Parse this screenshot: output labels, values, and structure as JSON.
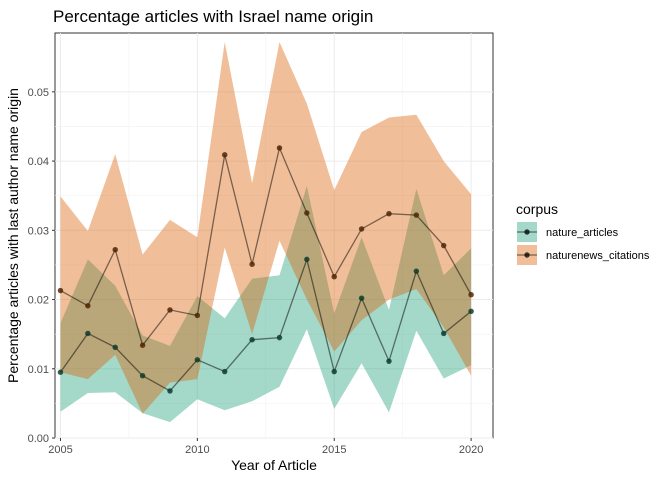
{
  "chart_data": {
    "type": "line",
    "title": "Percentage articles with Israel name origin",
    "xlabel": "Year of Article",
    "ylabel": "Percentage articles with last author name origin",
    "xlim": [
      2004.8,
      2020.8
    ],
    "ylim": [
      0,
      0.0585
    ],
    "x_ticks": [
      2005,
      2010,
      2015,
      2020
    ],
    "x_tick_labels": [
      "2005",
      "2010",
      "2015",
      "2020"
    ],
    "y_ticks": [
      0,
      0.01,
      0.02,
      0.03,
      0.04,
      0.05
    ],
    "y_tick_labels": [
      "0.00",
      "0.01",
      "0.02",
      "0.03",
      "0.04",
      "0.05"
    ],
    "grid": true,
    "legend": {
      "title": "corpus",
      "placement": "right"
    },
    "x": [
      2005,
      2006,
      2007,
      2008,
      2009,
      2010,
      2011,
      2012,
      2013,
      2014,
      2015,
      2016,
      2017,
      2018,
      2019,
      2020
    ],
    "series": [
      {
        "name": "nature_articles",
        "color": "#1b9e77",
        "values": [
          0.0095,
          0.0151,
          0.0131,
          0.009,
          0.0068,
          0.0113,
          0.0096,
          0.0142,
          0.0145,
          0.0258,
          0.0096,
          0.0202,
          0.0111,
          0.0241,
          0.0151,
          0.0183
        ],
        "lower": [
          0.0038,
          0.0065,
          0.0066,
          0.0036,
          0.0023,
          0.0056,
          0.004,
          0.0053,
          0.0074,
          0.0157,
          0.0042,
          0.0108,
          0.0037,
          0.0155,
          0.0086,
          0.0105
        ],
        "upper": [
          0.0166,
          0.0258,
          0.022,
          0.0148,
          0.0133,
          0.0205,
          0.0173,
          0.023,
          0.0235,
          0.0364,
          0.018,
          0.029,
          0.0185,
          0.036,
          0.0235,
          0.0274
        ]
      },
      {
        "name": "naturenews_citations",
        "color": "#d95f02",
        "values": [
          0.0213,
          0.0191,
          0.0272,
          0.0134,
          0.0185,
          0.0177,
          0.0409,
          0.0251,
          0.0419,
          0.0325,
          0.0233,
          0.0302,
          0.0324,
          0.0322,
          0.0278,
          0.0207
        ],
        "lower": [
          0.0095,
          0.0085,
          0.012,
          0.0035,
          0.008,
          0.0085,
          0.0275,
          0.015,
          0.0285,
          0.02,
          0.0125,
          0.017,
          0.02,
          0.0215,
          0.016,
          0.009
        ],
        "upper": [
          0.0349,
          0.0299,
          0.041,
          0.0265,
          0.0315,
          0.029,
          0.0572,
          0.0368,
          0.0572,
          0.0483,
          0.0358,
          0.0442,
          0.0463,
          0.0467,
          0.04,
          0.0352
        ]
      }
    ]
  }
}
